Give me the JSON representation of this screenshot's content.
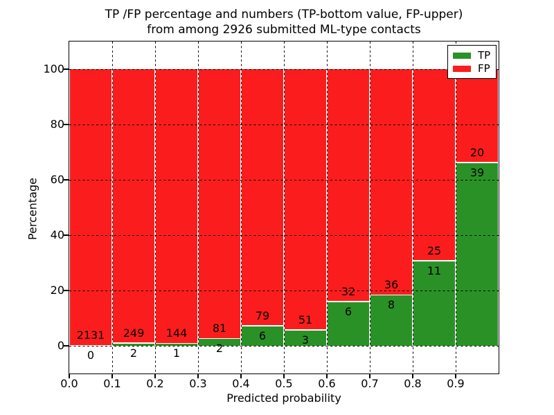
{
  "figure": {
    "title_line1": "TP /FP percentage and numbers (TP-bottom value, FP-upper)",
    "title_line2": "from among 2926 submitted ML-type contacts",
    "xlabel": "Predicted probability",
    "ylabel": "Percentage"
  },
  "legend": {
    "position": "upper right",
    "items": [
      {
        "label": "TP",
        "color": "#2a9127"
      },
      {
        "label": "FP",
        "color": "#fb1d1d"
      }
    ]
  },
  "chart_data": {
    "type": "bar",
    "subtype": "stacked-100-percent",
    "title": "TP /FP percentage and numbers (TP-bottom value, FP-upper) from among 2926 submitted ML-type contacts",
    "xlabel": "Predicted probability",
    "ylabel": "Percentage",
    "total_submitted": 2926,
    "grid": "dotted",
    "legend_position": "upper right",
    "xlim": [
      0.0,
      1.0
    ],
    "ylim": [
      -10,
      110
    ],
    "x_tick_labels": [
      "0.0",
      "0.1",
      "0.2",
      "0.3",
      "0.4",
      "0.5",
      "0.6",
      "0.7",
      "0.8",
      "0.9"
    ],
    "y_ticks": [
      0,
      20,
      40,
      60,
      80,
      100
    ],
    "categories": [
      "0.0-0.1",
      "0.1-0.2",
      "0.2-0.3",
      "0.3-0.4",
      "0.4-0.5",
      "0.5-0.6",
      "0.6-0.7",
      "0.7-0.8",
      "0.8-0.9",
      "0.9-1.0"
    ],
    "series": [
      {
        "name": "TP",
        "color": "#2a9127",
        "counts": [
          0,
          2,
          1,
          2,
          6,
          3,
          6,
          8,
          11,
          39
        ]
      },
      {
        "name": "FP",
        "color": "#fb1d1d",
        "counts": [
          2131,
          249,
          144,
          81,
          79,
          51,
          32,
          36,
          25,
          20
        ]
      }
    ],
    "tp_percent": [
      0.0,
      0.8,
      0.69,
      2.41,
      7.06,
      5.56,
      15.79,
      18.18,
      30.56,
      66.1
    ]
  }
}
